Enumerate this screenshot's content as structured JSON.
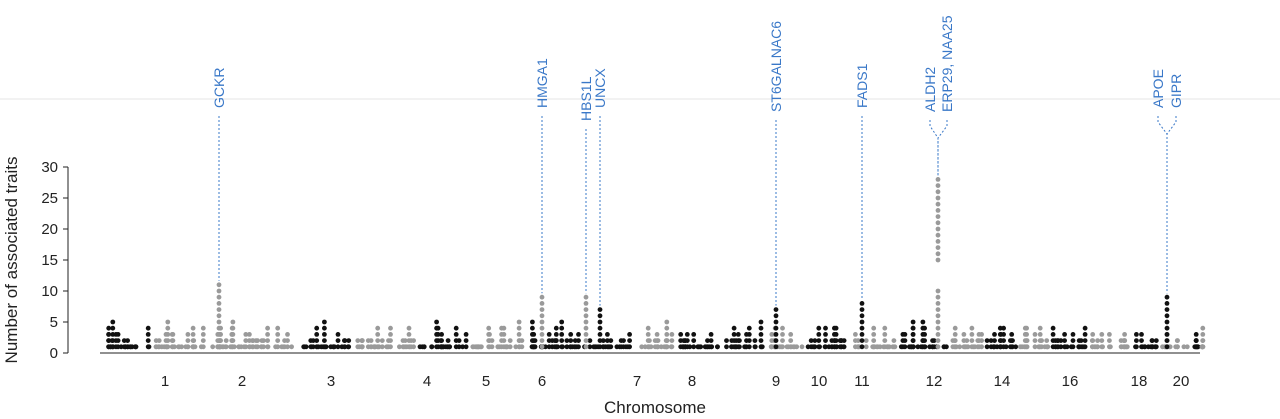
{
  "chart_data": {
    "type": "scatter",
    "title": "",
    "xlabel": "Chromosome",
    "ylabel": "Number of associated traits",
    "ylim": [
      0,
      30
    ],
    "y_ticks": [
      0,
      5,
      10,
      15,
      20,
      25,
      30
    ],
    "grid": false,
    "x_tick_labels": [
      "1",
      "2",
      "3",
      "4",
      "5",
      "6",
      "7",
      "8",
      "9",
      "10",
      "11",
      "12",
      "14",
      "16",
      "18",
      "20"
    ],
    "colors": {
      "odd_chromosome": "#111111",
      "even_chromosome": "#9a9a9a",
      "annotation": "#3a78c8"
    },
    "annotations": [
      {
        "label": "GCKR",
        "chromosome": "2",
        "traits": 11
      },
      {
        "label": "HMGA1",
        "chromosome": "6",
        "traits": 9
      },
      {
        "label": "HBS1L",
        "chromosome": "6",
        "traits": 9
      },
      {
        "label": "UNCX",
        "chromosome": "7",
        "traits": 7
      },
      {
        "label": "ST6GALNAC6",
        "chromosome": "9",
        "traits": 7
      },
      {
        "label": "FADS1",
        "chromosome": "11",
        "traits": 8
      },
      {
        "label": "ALDH2",
        "chromosome": "12",
        "traits": 28
      },
      {
        "label": "ERP29, NAA25",
        "chromosome": "12",
        "traits": 28
      },
      {
        "label": "APOE",
        "chromosome": "19",
        "traits": 9
      },
      {
        "label": "GIPR",
        "chromosome": "19",
        "traits": 9
      }
    ]
  }
}
